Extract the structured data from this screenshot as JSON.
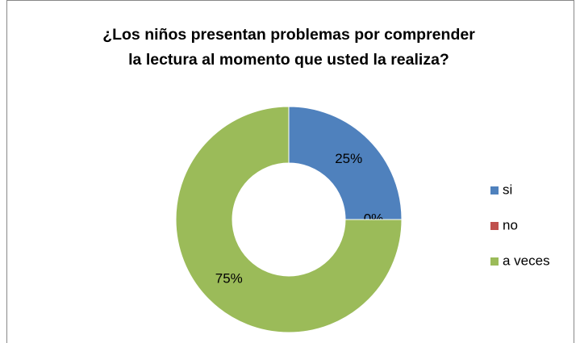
{
  "chart_data": {
    "type": "donut",
    "title": "¿Los niños presentan problemas por comprender la lectura al momento que usted la realiza?",
    "categories": [
      "si",
      "no",
      "a veces"
    ],
    "values": [
      25,
      0,
      75
    ],
    "value_labels": [
      "25%",
      "0%",
      "75%"
    ],
    "colors": [
      "#4f81bd",
      "#c0504d",
      "#9bbb59"
    ],
    "legend": "right"
  }
}
